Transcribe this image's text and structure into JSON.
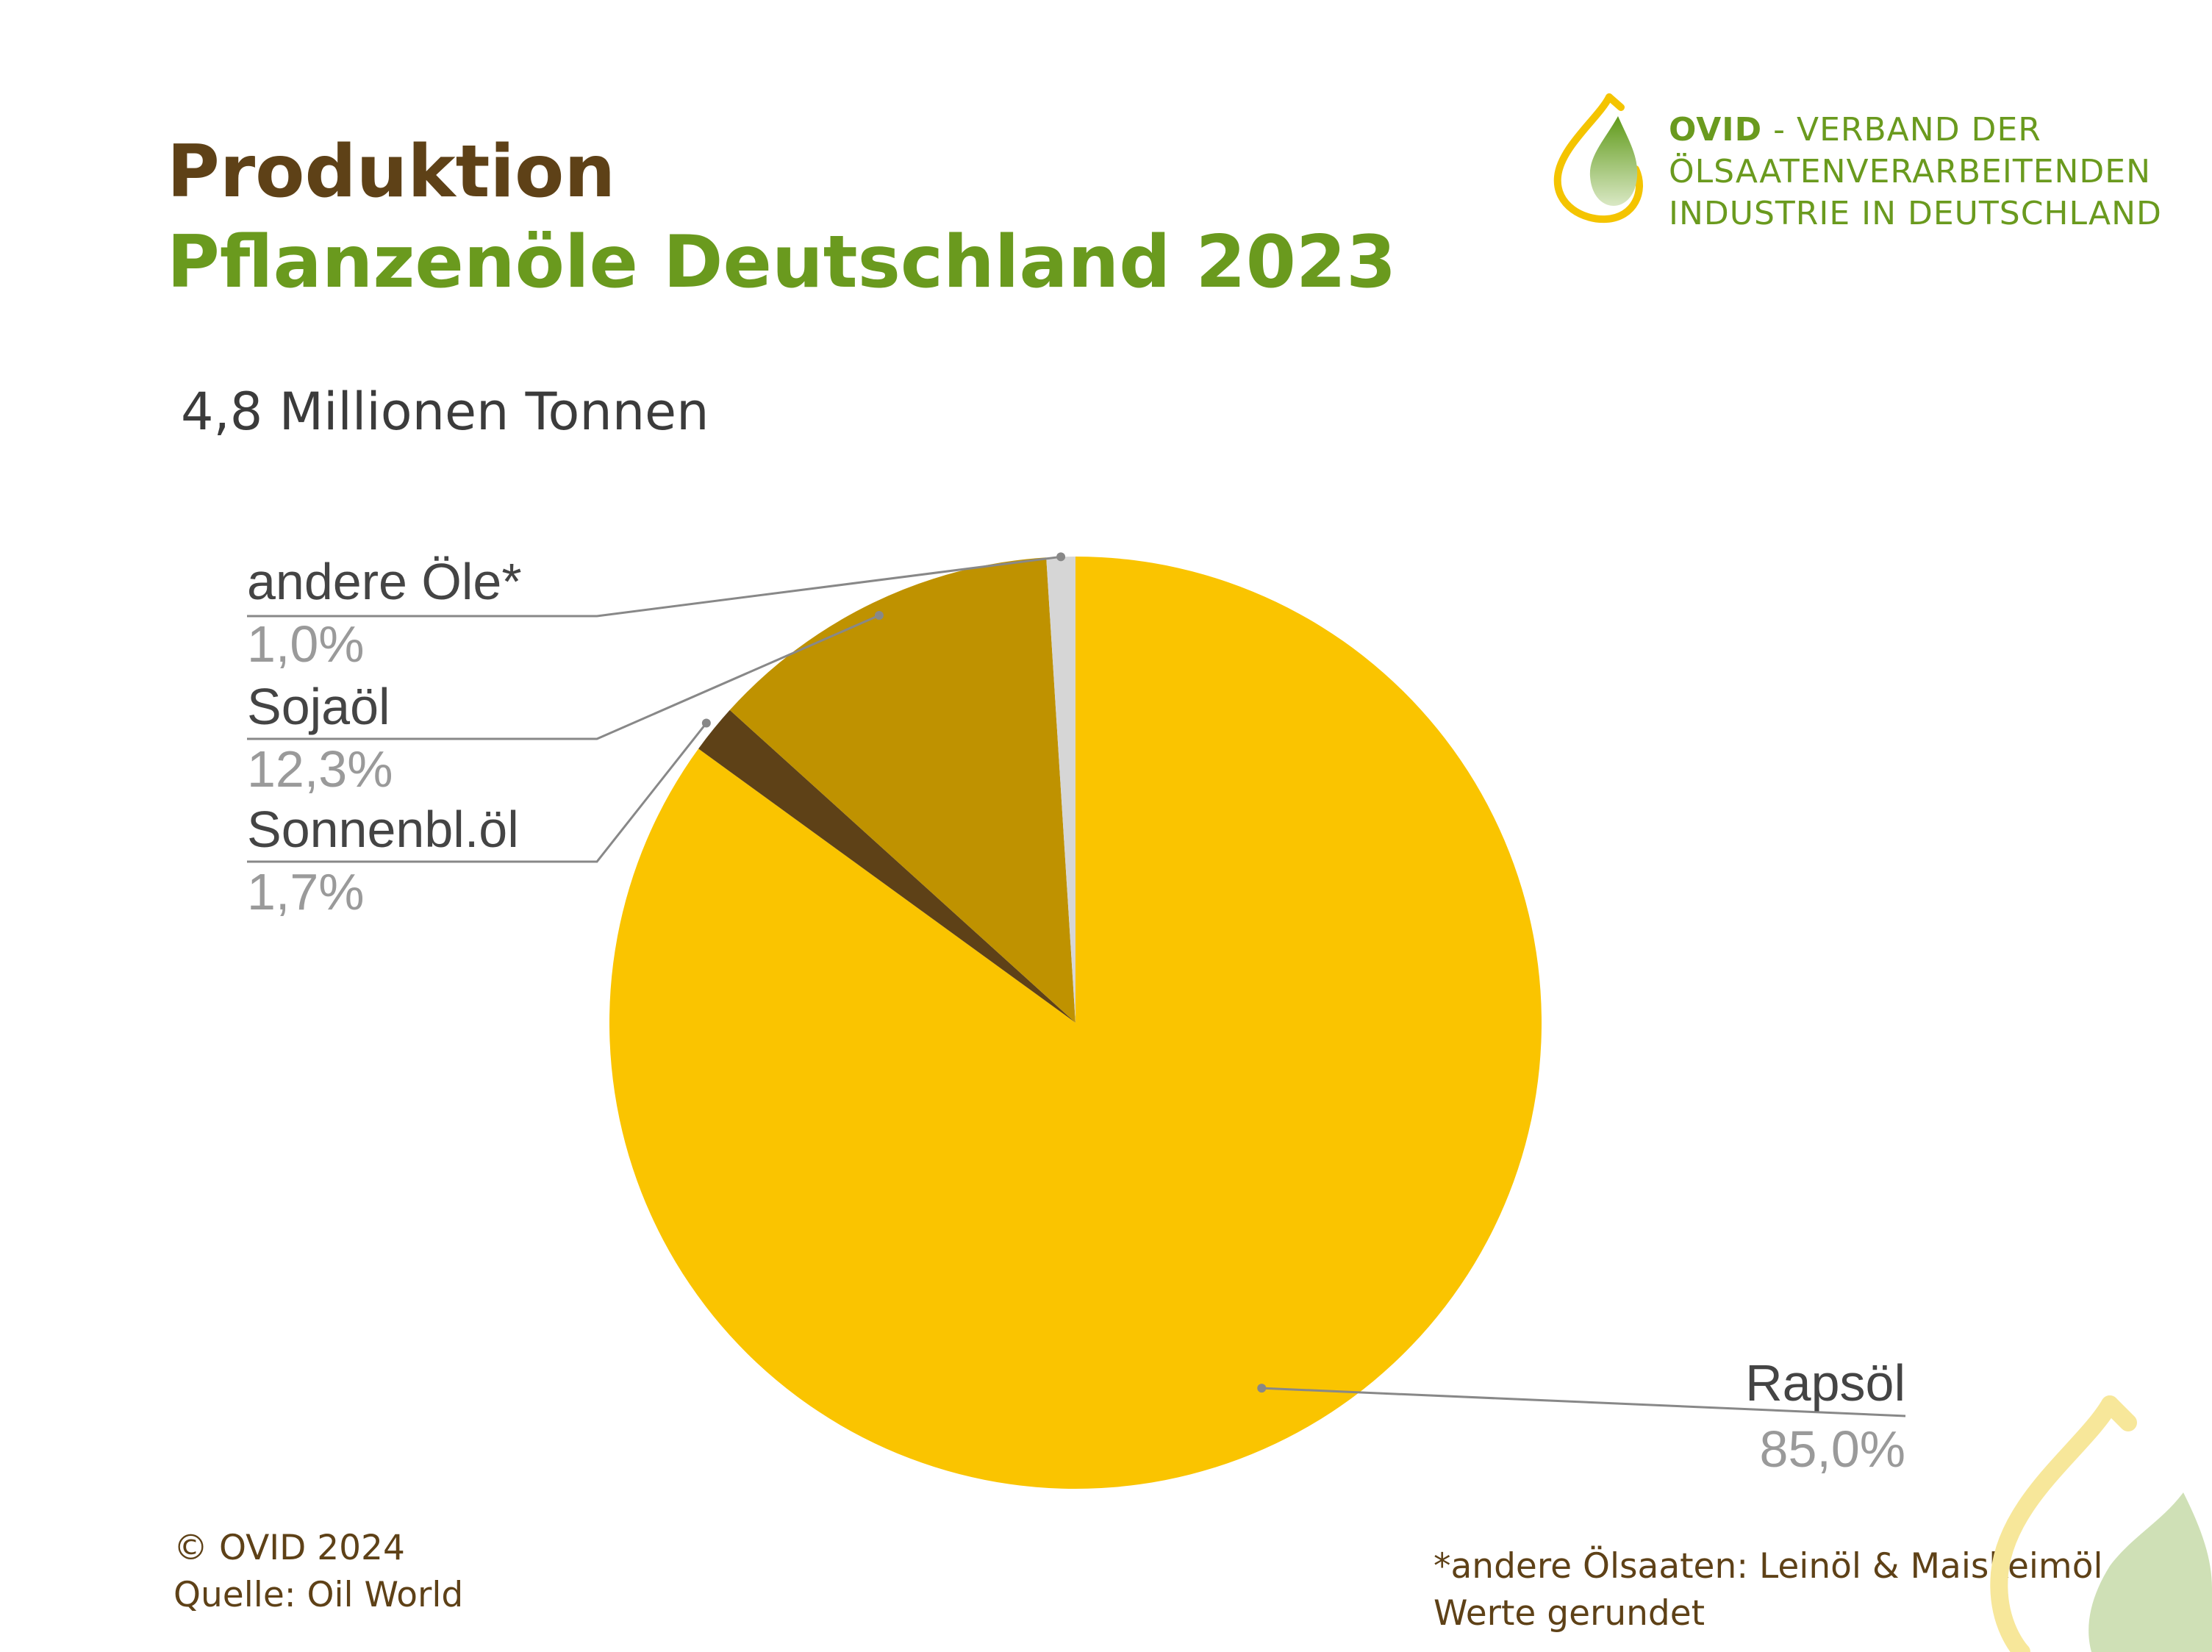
{
  "header": {
    "title_line1": "Produktion",
    "title_line2": "Pflanzenöle Deutschland 2023",
    "subtitle": "4,8 Millionen Tonnen"
  },
  "logo": {
    "brand": "OVID",
    "line1_rest": " - VERBAND DER",
    "line2": "ÖLSAATENVERARBEITENDEN",
    "line3": "INDUSTRIE IN DEUTSCHLAND"
  },
  "chart_data": {
    "type": "pie",
    "categories": [
      "Rapsöl",
      "Sonnenbl.öl",
      "Sojaöl",
      "andere Öle*"
    ],
    "values": [
      85.0,
      1.7,
      12.3,
      1.0
    ],
    "value_labels": [
      "85,0%",
      "1,7%",
      "12,3%",
      "1,0%"
    ],
    "colors": [
      "#fac400",
      "#5e4117",
      "#bf9200",
      "#d6d6d6"
    ],
    "label_color": "#444444",
    "value_label_color": "#9a9a9a",
    "leader_color": "#888888",
    "start": "12 o'clock",
    "direction": "clockwise"
  },
  "footer": {
    "copyright": "© OVID 2024",
    "source": "Quelle: Oil World",
    "note1": "*andere Ölsaaten: Leinöl & Maiskeimöl",
    "note2": "Werte gerundet"
  },
  "colors": {
    "brown": "#5e4117",
    "green": "#6a9a1e",
    "yellow": "#fac400"
  }
}
